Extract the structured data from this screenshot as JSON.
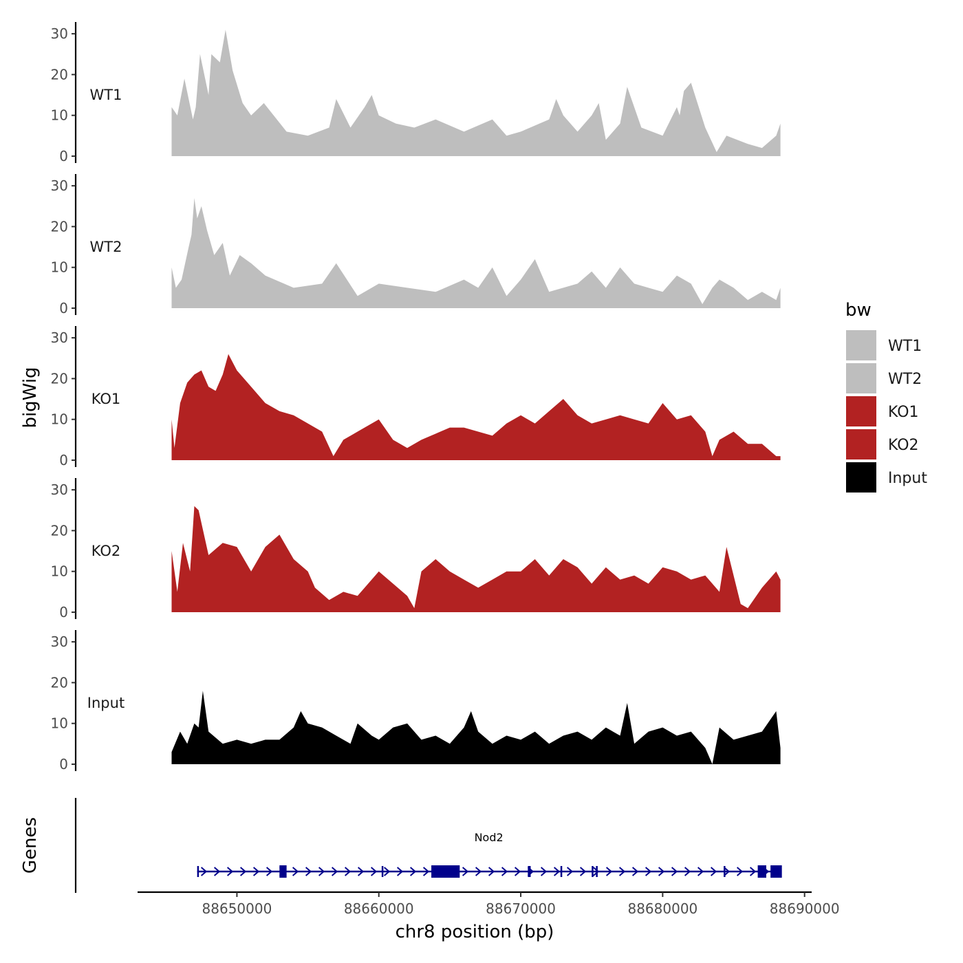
{
  "chart_data": {
    "type": "area",
    "title": "",
    "ylabel": "bigWig",
    "gene_track_label": "Genes",
    "xlabel": "chr8 position (bp)",
    "xlim": [
      88643000,
      88690500
    ],
    "ylim": [
      0,
      31
    ],
    "x_ticks": [
      88650000,
      88660000,
      88670000,
      88680000,
      88690000
    ],
    "x_tick_labels": [
      "88650000",
      "88660000",
      "88670000",
      "88680000",
      "88690000"
    ],
    "y_ticks": [
      0,
      10,
      20,
      30
    ],
    "y_tick_labels": [
      "0",
      "10",
      "20",
      "30"
    ],
    "legend": {
      "title": "bw",
      "position": "right",
      "entries": [
        {
          "label": "WT1",
          "color": "#bebebe"
        },
        {
          "label": "WT2",
          "color": "#bebebe"
        },
        {
          "label": "KO1",
          "color": "#b22222"
        },
        {
          "label": "KO2",
          "color": "#b22222"
        },
        {
          "label": "Input",
          "color": "#000000"
        }
      ]
    },
    "series": [
      {
        "name": "WT1",
        "label": "WT1",
        "color": "#bebebe",
        "x": [
          88645400,
          88645800,
          88646300,
          88646900,
          88647100,
          88647400,
          88648000,
          88648200,
          88648800,
          88649200,
          88649700,
          88650400,
          88651000,
          88651900,
          88653500,
          88655000,
          88656500,
          88657000,
          88658000,
          88659000,
          88659500,
          88660000,
          88661200,
          88662500,
          88664000,
          88666000,
          88668000,
          88669000,
          88670000,
          88672000,
          88672500,
          88673000,
          88674000,
          88675000,
          88675500,
          88676000,
          88677000,
          88677500,
          88678500,
          88680000,
          88681000,
          88681200,
          88681500,
          88682000,
          88683000,
          88683800,
          88684500,
          88686000,
          88687000,
          88688000,
          88688300
        ],
        "y": [
          12,
          10,
          19,
          9,
          12,
          25,
          15,
          25,
          23,
          31,
          21,
          13,
          10,
          13,
          6,
          5,
          7,
          14,
          7,
          12,
          15,
          10,
          8,
          7,
          9,
          6,
          9,
          5,
          6,
          9,
          14,
          10,
          6,
          10,
          13,
          4,
          8,
          17,
          7,
          5,
          12,
          10,
          16,
          18,
          7,
          1,
          5,
          3,
          2,
          5,
          8
        ]
      },
      {
        "name": "WT2",
        "label": "WT2",
        "color": "#bebebe",
        "x": [
          88645400,
          88645700,
          88646100,
          88646600,
          88646800,
          88647000,
          88647200,
          88647500,
          88647900,
          88648400,
          88649000,
          88649500,
          88650200,
          88651000,
          88652000,
          88654000,
          88656000,
          88657000,
          88658500,
          88660000,
          88662000,
          88664000,
          88666000,
          88667000,
          88668000,
          88669000,
          88670000,
          88671000,
          88672000,
          88674000,
          88675000,
          88676000,
          88677000,
          88678000,
          88679000,
          88680000,
          88681000,
          88682000,
          88682800,
          88683500,
          88684000,
          88685000,
          88686000,
          88687000,
          88688000,
          88688300
        ],
        "y": [
          10,
          5,
          7,
          15,
          18,
          27,
          22,
          25,
          19,
          13,
          16,
          8,
          13,
          11,
          8,
          5,
          6,
          11,
          3,
          6,
          5,
          4,
          7,
          5,
          10,
          3,
          7,
          12,
          4,
          6,
          9,
          5,
          10,
          6,
          5,
          4,
          8,
          6,
          1,
          5,
          7,
          5,
          2,
          4,
          2,
          5
        ]
      },
      {
        "name": "KO1",
        "label": "KO1",
        "color": "#b22222",
        "x": [
          88645400,
          88645600,
          88646000,
          88646500,
          88647000,
          88647500,
          88648000,
          88648500,
          88649000,
          88649400,
          88650000,
          88651000,
          88652000,
          88653000,
          88654000,
          88655000,
          88656000,
          88656800,
          88657500,
          88658500,
          88660000,
          88661000,
          88662000,
          88663000,
          88665000,
          88666000,
          88668000,
          88669000,
          88670000,
          88671000,
          88672000,
          88673000,
          88674000,
          88675000,
          88676000,
          88677000,
          88678000,
          88679000,
          88680000,
          88681000,
          88682000,
          88683000,
          88683500,
          88684000,
          88685000,
          88686000,
          88687000,
          88688000,
          88688300
        ],
        "y": [
          10,
          3,
          14,
          19,
          21,
          22,
          18,
          17,
          21,
          26,
          22,
          18,
          14,
          12,
          11,
          9,
          7,
          1,
          5,
          7,
          10,
          5,
          3,
          5,
          8,
          8,
          6,
          9,
          11,
          9,
          12,
          15,
          11,
          9,
          10,
          11,
          10,
          9,
          14,
          10,
          11,
          7,
          1,
          5,
          7,
          4,
          4,
          1,
          1
        ]
      },
      {
        "name": "KO2",
        "label": "KO2",
        "color": "#b22222",
        "x": [
          88645400,
          88645800,
          88646200,
          88646700,
          88647000,
          88647300,
          88648000,
          88649000,
          88650000,
          88651000,
          88652000,
          88653000,
          88654000,
          88655000,
          88655500,
          88656500,
          88657500,
          88658500,
          88660000,
          88661000,
          88662000,
          88662500,
          88663000,
          88664000,
          88665000,
          88666000,
          88667000,
          88668000,
          88669000,
          88670000,
          88671000,
          88672000,
          88673000,
          88674000,
          88675000,
          88676000,
          88677000,
          88678000,
          88679000,
          88680000,
          88681000,
          88682000,
          88683000,
          88684000,
          88684500,
          88685500,
          88686000,
          88687000,
          88688000,
          88688300
        ],
        "y": [
          15,
          5,
          17,
          10,
          26,
          25,
          14,
          17,
          16,
          10,
          16,
          19,
          13,
          10,
          6,
          3,
          5,
          4,
          10,
          7,
          4,
          1,
          10,
          13,
          10,
          8,
          6,
          8,
          10,
          10,
          13,
          9,
          13,
          11,
          7,
          11,
          8,
          9,
          7,
          11,
          10,
          8,
          9,
          5,
          16,
          2,
          1,
          6,
          10,
          8
        ]
      },
      {
        "name": "Input",
        "label": "Input",
        "color": "#000000",
        "x": [
          88645400,
          88646000,
          88646500,
          88647000,
          88647300,
          88647600,
          88648000,
          88649000,
          88650000,
          88651000,
          88652000,
          88653000,
          88654000,
          88654500,
          88655000,
          88656000,
          88657000,
          88658000,
          88658500,
          88659500,
          88660000,
          88661000,
          88662000,
          88663000,
          88664000,
          88665000,
          88666000,
          88666500,
          88667000,
          88668000,
          88669000,
          88670000,
          88671000,
          88672000,
          88673000,
          88674000,
          88675000,
          88676000,
          88677000,
          88677500,
          88678000,
          88679000,
          88680000,
          88681000,
          88682000,
          88683000,
          88683500,
          88684000,
          88685000,
          88686000,
          88687000,
          88688000,
          88688300
        ],
        "y": [
          3,
          8,
          5,
          10,
          9,
          18,
          8,
          5,
          6,
          5,
          6,
          6,
          9,
          13,
          10,
          9,
          7,
          5,
          10,
          7,
          6,
          9,
          10,
          6,
          7,
          5,
          9,
          13,
          8,
          5,
          7,
          6,
          8,
          5,
          7,
          8,
          6,
          9,
          7,
          15,
          5,
          8,
          9,
          7,
          8,
          4,
          0,
          9,
          6,
          7,
          8,
          13,
          4
        ]
      }
    ],
    "genes": [
      {
        "name": "Nod2",
        "start": 88647200,
        "end": 88688300,
        "strand": "+",
        "exons": [
          [
            88647200,
            88647300
          ],
          [
            88653000,
            88653500
          ],
          [
            88660200,
            88660300
          ],
          [
            88663700,
            88665700
          ],
          [
            88670500,
            88670700
          ],
          [
            88672800,
            88672900
          ],
          [
            88675000,
            88675100
          ],
          [
            88675300,
            88675400
          ],
          [
            88684300,
            88684400
          ],
          [
            88686700,
            88687300
          ],
          [
            88687600,
            88688400
          ]
        ]
      }
    ]
  }
}
